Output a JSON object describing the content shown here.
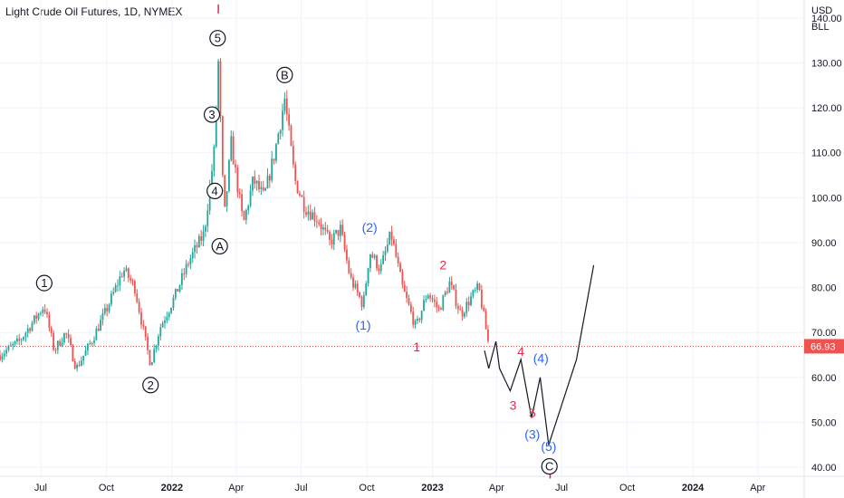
{
  "header": {
    "title": "Light Crude Oil Futures, 1D, NYMEX",
    "currency": "USD",
    "unit": "BLL"
  },
  "colors": {
    "up": "#26a69a",
    "down": "#ef5350",
    "black": "#131722",
    "blue": "#2962ff",
    "red": "#e8264a",
    "grid": "#f0f3fa",
    "axis_text": "#131722"
  },
  "price_label": {
    "value": "66.93",
    "price": 66.93
  },
  "chart_data": {
    "type": "candlestick",
    "title": "Light Crude Oil Futures, 1D, NYMEX",
    "ylabel": "USD",
    "ylim": [
      38,
      144
    ],
    "xlim": [
      "2021-05-05",
      "2024-06-05"
    ],
    "y_ticks": [
      "40.00",
      "50.00",
      "60.00",
      "70.00",
      "80.00",
      "90.00",
      "100.00",
      "110.00",
      "120.00",
      "130.00",
      "140.00"
    ],
    "x_ticks": [
      {
        "label": "Jul",
        "date": "2021-07-01"
      },
      {
        "label": "Oct",
        "date": "2021-10-01"
      },
      {
        "label": "2022",
        "date": "2022-01-01"
      },
      {
        "label": "Apr",
        "date": "2022-04-01"
      },
      {
        "label": "Jul",
        "date": "2022-07-01"
      },
      {
        "label": "Oct",
        "date": "2022-10-01"
      },
      {
        "label": "2023",
        "date": "2023-01-01"
      },
      {
        "label": "Apr",
        "date": "2023-04-01"
      },
      {
        "label": "Jul",
        "date": "2023-07-01"
      },
      {
        "label": "Oct",
        "date": "2023-10-01"
      },
      {
        "label": "2024",
        "date": "2024-01-01"
      },
      {
        "label": "Apr",
        "date": "2024-04-01"
      }
    ],
    "price_path": [
      [
        "2021-05-05",
        65
      ],
      [
        "2021-06-01",
        68
      ],
      [
        "2021-07-06",
        76
      ],
      [
        "2021-07-20",
        66
      ],
      [
        "2021-08-05",
        70
      ],
      [
        "2021-08-20",
        62
      ],
      [
        "2021-09-10",
        68
      ],
      [
        "2021-10-01",
        75
      ],
      [
        "2021-10-25",
        84
      ],
      [
        "2021-11-10",
        80
      ],
      [
        "2021-11-25",
        68
      ],
      [
        "2021-12-02",
        63
      ],
      [
        "2021-12-15",
        71
      ],
      [
        "2022-01-05",
        78
      ],
      [
        "2022-01-25",
        86
      ],
      [
        "2022-02-15",
        92
      ],
      [
        "2022-03-01",
        110
      ],
      [
        "2022-03-07",
        130
      ],
      [
        "2022-03-15",
        95
      ],
      [
        "2022-03-25",
        112
      ],
      [
        "2022-04-11",
        94
      ],
      [
        "2022-04-25",
        104
      ],
      [
        "2022-05-10",
        100
      ],
      [
        "2022-05-25",
        110
      ],
      [
        "2022-06-08",
        122
      ],
      [
        "2022-06-22",
        104
      ],
      [
        "2022-07-06",
        98
      ],
      [
        "2022-07-25",
        95
      ],
      [
        "2022-08-10",
        90
      ],
      [
        "2022-08-25",
        93
      ],
      [
        "2022-09-08",
        82
      ],
      [
        "2022-09-26",
        76
      ],
      [
        "2022-10-05",
        88
      ],
      [
        "2022-10-20",
        84
      ],
      [
        "2022-11-04",
        92
      ],
      [
        "2022-11-20",
        80
      ],
      [
        "2022-12-09",
        71
      ],
      [
        "2022-12-25",
        79
      ],
      [
        "2023-01-10",
        75
      ],
      [
        "2023-01-25",
        81
      ],
      [
        "2023-02-10",
        74
      ],
      [
        "2023-02-25",
        78
      ],
      [
        "2023-03-07",
        80
      ],
      [
        "2023-03-20",
        68
      ]
    ],
    "projection": [
      [
        "2023-03-15",
        66
      ],
      [
        "2023-03-21",
        62
      ],
      [
        "2023-03-31",
        68
      ],
      [
        "2023-04-05",
        62
      ],
      [
        "2023-04-20",
        57
      ],
      [
        "2023-05-05",
        64
      ],
      [
        "2023-05-20",
        51
      ],
      [
        "2023-06-01",
        60
      ],
      [
        "2023-06-13",
        45
      ],
      [
        "2023-07-22",
        64
      ],
      [
        "2023-08-15",
        85
      ]
    ],
    "wave_labels": [
      {
        "text": "1",
        "date": "2021-07-06",
        "price": 81,
        "style": "circle",
        "color": "black"
      },
      {
        "text": "2",
        "date": "2021-12-02",
        "price": 58.3,
        "style": "circle",
        "color": "black"
      },
      {
        "text": "3",
        "date": "2022-02-26",
        "price": 118.5,
        "style": "circle",
        "color": "black"
      },
      {
        "text": "4",
        "date": "2022-03-02",
        "price": 101.5,
        "style": "circle",
        "color": "black"
      },
      {
        "text": "5",
        "date": "2022-03-06",
        "price": 135.5,
        "style": "circle",
        "color": "black"
      },
      {
        "text": "A",
        "date": "2022-03-09",
        "price": 89.2,
        "style": "circle",
        "color": "black"
      },
      {
        "text": "B",
        "date": "2022-06-08",
        "price": 127.3,
        "style": "circle",
        "color": "black"
      },
      {
        "text": "C",
        "date": "2023-06-14",
        "price": 40.2,
        "style": "circle",
        "color": "black"
      },
      {
        "text": "(1)",
        "date": "2022-09-26",
        "price": 71.7,
        "style": "plain",
        "color": "blue"
      },
      {
        "text": "(2)",
        "date": "2022-10-05",
        "price": 93.4,
        "style": "plain",
        "color": "blue"
      },
      {
        "text": "(3)",
        "date": "2023-05-21",
        "price": 47.4,
        "style": "plain",
        "color": "blue"
      },
      {
        "text": "(4)",
        "date": "2023-06-02",
        "price": 64.3,
        "style": "plain",
        "color": "blue"
      },
      {
        "text": "(5)",
        "date": "2023-06-13",
        "price": 44.6,
        "style": "plain",
        "color": "blue"
      },
      {
        "text": "1",
        "date": "2022-12-10",
        "price": 66.8,
        "style": "plain",
        "color": "red"
      },
      {
        "text": "2",
        "date": "2023-01-16",
        "price": 85.1,
        "style": "plain",
        "color": "red"
      },
      {
        "text": "3",
        "date": "2023-04-24",
        "price": 53.8,
        "style": "plain",
        "color": "red"
      },
      {
        "text": "4",
        "date": "2023-05-05",
        "price": 65.8,
        "style": "plain",
        "color": "red"
      },
      {
        "text": "5",
        "date": "2023-05-21",
        "price": 52.1,
        "style": "plain",
        "color": "red"
      }
    ],
    "red_ticks": [
      {
        "date": "2022-03-07",
        "price": 142
      },
      {
        "date": "2023-06-15",
        "price": 38.5
      }
    ]
  }
}
